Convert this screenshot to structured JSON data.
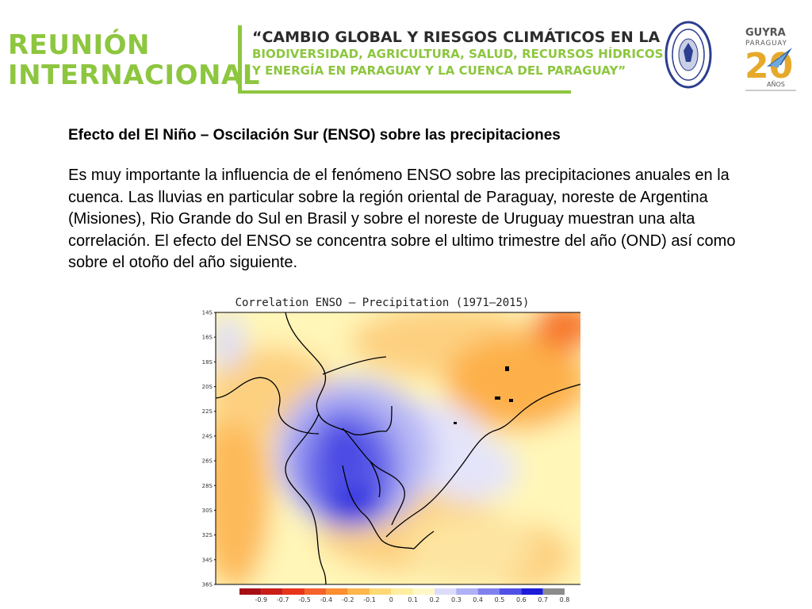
{
  "header": {
    "event_line1": "REUNIÓN",
    "event_line2": "INTERNACIONAL",
    "subtitle_line1": "“CAMBIO GLOBAL Y RIESGOS CLIMÁTICOS EN LA",
    "subtitle_line2": "BIODIVERSIDAD, AGRICULTURA, SALUD, RECURSOS HÍDRICOS",
    "subtitle_line3": "Y ENERGÍA EN PARAGUAY Y LA CUENCA DEL PARAGUAY”",
    "logo_guyra_name": "GUYRA",
    "logo_guyra_country": "PARAGUAY",
    "logo_guyra_years": "20",
    "logo_guyra_anos": "AÑOS"
  },
  "content": {
    "heading": "Efecto del El Niño – Oscilación Sur (ENSO) sobre las precipitaciones",
    "paragraph": "Es muy importante la influencia de el fenómeno ENSO sobre las precipitaciones anuales en la cuenca. Las lluvias en particular sobre la región oriental de Paraguay, noreste de Argentina (Misiones), Rio Grande do Sul en Brasil y sobre el noreste de Uruguay muestran una alta correlación.  El efecto del ENSO se concentra sobre el ultimo trimestre del año (OND) así como sobre el otoño del año siguiente."
  },
  "chart_data": {
    "type": "heatmap",
    "title": "Correlation ENSO – Precipitation (1971–2015)",
    "ylabel_ticks": [
      "14S",
      "16S",
      "18S",
      "20S",
      "22S",
      "24S",
      "26S",
      "28S",
      "30S",
      "32S",
      "34S",
      "36S"
    ],
    "colorbar_labels": [
      "-0.9",
      "-0.7",
      "-0.5",
      "-0.4",
      "-0.2",
      "-0.1",
      "0",
      "0.1",
      "0.2",
      "0.3",
      "0.4",
      "0.5",
      "0.6",
      "0.7",
      "0.8"
    ],
    "colorbar_colors": [
      "#a50f15",
      "#c81e17",
      "#e8351a",
      "#f5622b",
      "#fb8e2f",
      "#fdb64a",
      "#fed976",
      "#ffeda0",
      "#fff8c6",
      "#dcdcfa",
      "#b0b0f5",
      "#8080ee",
      "#5050e6",
      "#1c1cd8",
      "#8c8c8c"
    ]
  }
}
